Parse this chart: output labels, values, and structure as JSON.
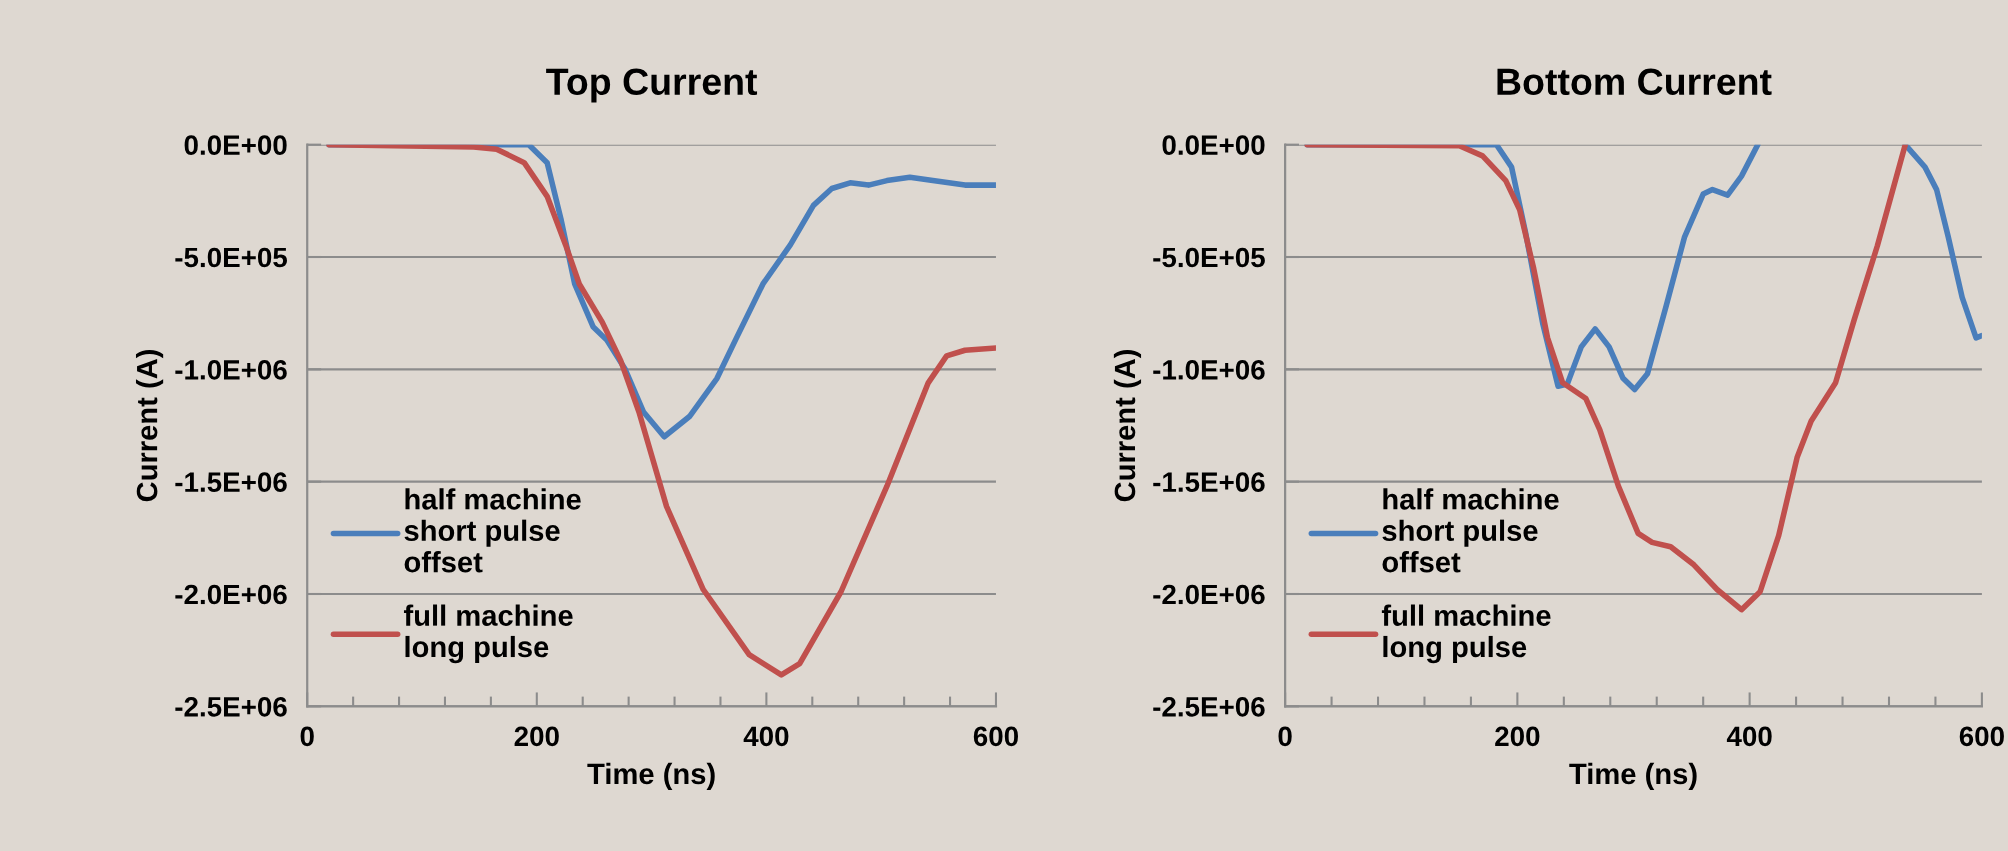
{
  "chart_data": [
    {
      "type": "line",
      "title": "Top Current",
      "xlabel": "Time (ns)",
      "ylabel": "Current (A)",
      "xlim": [
        0,
        600
      ],
      "xticks": [
        0,
        {
          "value": 40,
          "label": null
        },
        {
          "value": 80,
          "label": null
        },
        {
          "value": 120,
          "label": null
        },
        {
          "value": 160,
          "label": null
        },
        200,
        {
          "value": 240,
          "label": null
        },
        {
          "value": 280,
          "label": null
        },
        {
          "value": 320,
          "label": null
        },
        {
          "value": 360,
          "label": null
        },
        400,
        {
          "value": 440,
          "label": null
        },
        {
          "value": 480,
          "label": null
        },
        {
          "value": 520,
          "label": null
        },
        {
          "value": 560,
          "label": null
        },
        600
      ],
      "ylim": [
        -2500000,
        0
      ],
      "yticks": [
        {
          "value": -2500000,
          "label": "-2.5E+06"
        },
        {
          "value": -2000000,
          "label": "-2.0E+06"
        },
        {
          "value": -1500000,
          "label": "-1.5E+06"
        },
        {
          "value": -1000000,
          "label": "-1.0E+06"
        },
        {
          "value": -500000,
          "label": "-5.0E+05"
        },
        {
          "value": 0,
          "label": "0.0E+00"
        }
      ],
      "grid": "y",
      "legend": "bottom left",
      "line_style": "solid",
      "marker": "none",
      "series": [
        {
          "name": "half machine\nshort pulse\noffset",
          "color": "#4a7ebb",
          "x": [
            19,
            193,
            209,
            221,
            233,
            249,
            261,
            277,
            293,
            311,
            333,
            357,
            373,
            397,
            421,
            441,
            457,
            473,
            489,
            505,
            525,
            545,
            573,
            600
          ],
          "values": [
            0,
            0,
            -80000,
            -330000,
            -620000,
            -810000,
            -870000,
            -1000000,
            -1190000,
            -1300000,
            -1210000,
            -1040000,
            -870000,
            -620000,
            -445000,
            -270000,
            -195000,
            -170000,
            -180000,
            -160000,
            -145000,
            -160000,
            -180000,
            -180000
          ]
        },
        {
          "name": "full machine\nlong pulse",
          "color": "#c0504d",
          "x": [
            19,
            145,
            165,
            189,
            209,
            225,
            237,
            257,
            273,
            289,
            313,
            345,
            385,
            413,
            429,
            465,
            505,
            541,
            557,
            573,
            600
          ],
          "values": [
            0,
            -10000,
            -20000,
            -80000,
            -230000,
            -445000,
            -620000,
            -790000,
            -960000,
            -1190000,
            -1610000,
            -1980000,
            -2270000,
            -2360000,
            -2310000,
            -1990000,
            -1520000,
            -1060000,
            -940000,
            -915000,
            -905000
          ]
        }
      ]
    },
    {
      "type": "line",
      "title": "Bottom Current",
      "xlabel": "Time (ns)",
      "ylabel": "Current (A)",
      "xlim": [
        0,
        600
      ],
      "xticks": [
        0,
        {
          "value": 40,
          "label": null
        },
        {
          "value": 80,
          "label": null
        },
        {
          "value": 120,
          "label": null
        },
        {
          "value": 160,
          "label": null
        },
        200,
        {
          "value": 240,
          "label": null
        },
        {
          "value": 280,
          "label": null
        },
        {
          "value": 320,
          "label": null
        },
        {
          "value": 360,
          "label": null
        },
        400,
        {
          "value": 440,
          "label": null
        },
        {
          "value": 480,
          "label": null
        },
        {
          "value": 520,
          "label": null
        },
        {
          "value": 560,
          "label": null
        },
        600
      ],
      "ylim": [
        -2500000,
        0
      ],
      "yticks": [
        {
          "value": -2500000,
          "label": "-2.5E+06"
        },
        {
          "value": -2000000,
          "label": "-2.0E+06"
        },
        {
          "value": -1500000,
          "label": "-1.5E+06"
        },
        {
          "value": -1000000,
          "label": "-1.0E+06"
        },
        {
          "value": -500000,
          "label": "-5.0E+05"
        },
        {
          "value": 0,
          "label": "0.0E+00"
        }
      ],
      "grid": "y",
      "legend": "bottom left",
      "line_style": "solid",
      "marker": "none",
      "series": [
        {
          "name": "half machine\nshort pulse\noffset",
          "color": "#4a7ebb",
          "x": [
            19,
            182,
            195,
            207,
            222,
            235,
            243,
            255,
            267,
            279,
            291,
            301,
            312,
            328,
            344,
            360,
            368,
            381,
            393,
            407,
            470,
            534,
            551,
            561,
            571,
            583,
            595,
            600
          ],
          "values": [
            0,
            0,
            -100000,
            -390000,
            -800000,
            -1075000,
            -1065000,
            -900000,
            -820000,
            -900000,
            -1040000,
            -1090000,
            -1020000,
            -720000,
            -410000,
            -220000,
            -200000,
            -225000,
            -140000,
            0,
            null,
            0,
            -100000,
            -200000,
            -410000,
            -680000,
            -860000,
            -850000
          ]
        },
        {
          "name": "full machine\nlong pulse",
          "color": "#c0504d",
          "x": [
            19,
            150,
            170,
            190,
            202,
            214,
            226,
            239,
            259,
            271,
            287,
            304,
            316,
            332,
            352,
            372,
            393,
            409,
            425,
            441,
            453,
            474,
            490,
            510,
            534
          ],
          "values": [
            0,
            -5000,
            -50000,
            -160000,
            -290000,
            -550000,
            -860000,
            -1060000,
            -1130000,
            -1270000,
            -1520000,
            -1730000,
            -1770000,
            -1790000,
            -1870000,
            -1980000,
            -2070000,
            -1990000,
            -1740000,
            -1390000,
            -1230000,
            -1060000,
            -780000,
            -450000,
            0
          ]
        }
      ]
    }
  ]
}
